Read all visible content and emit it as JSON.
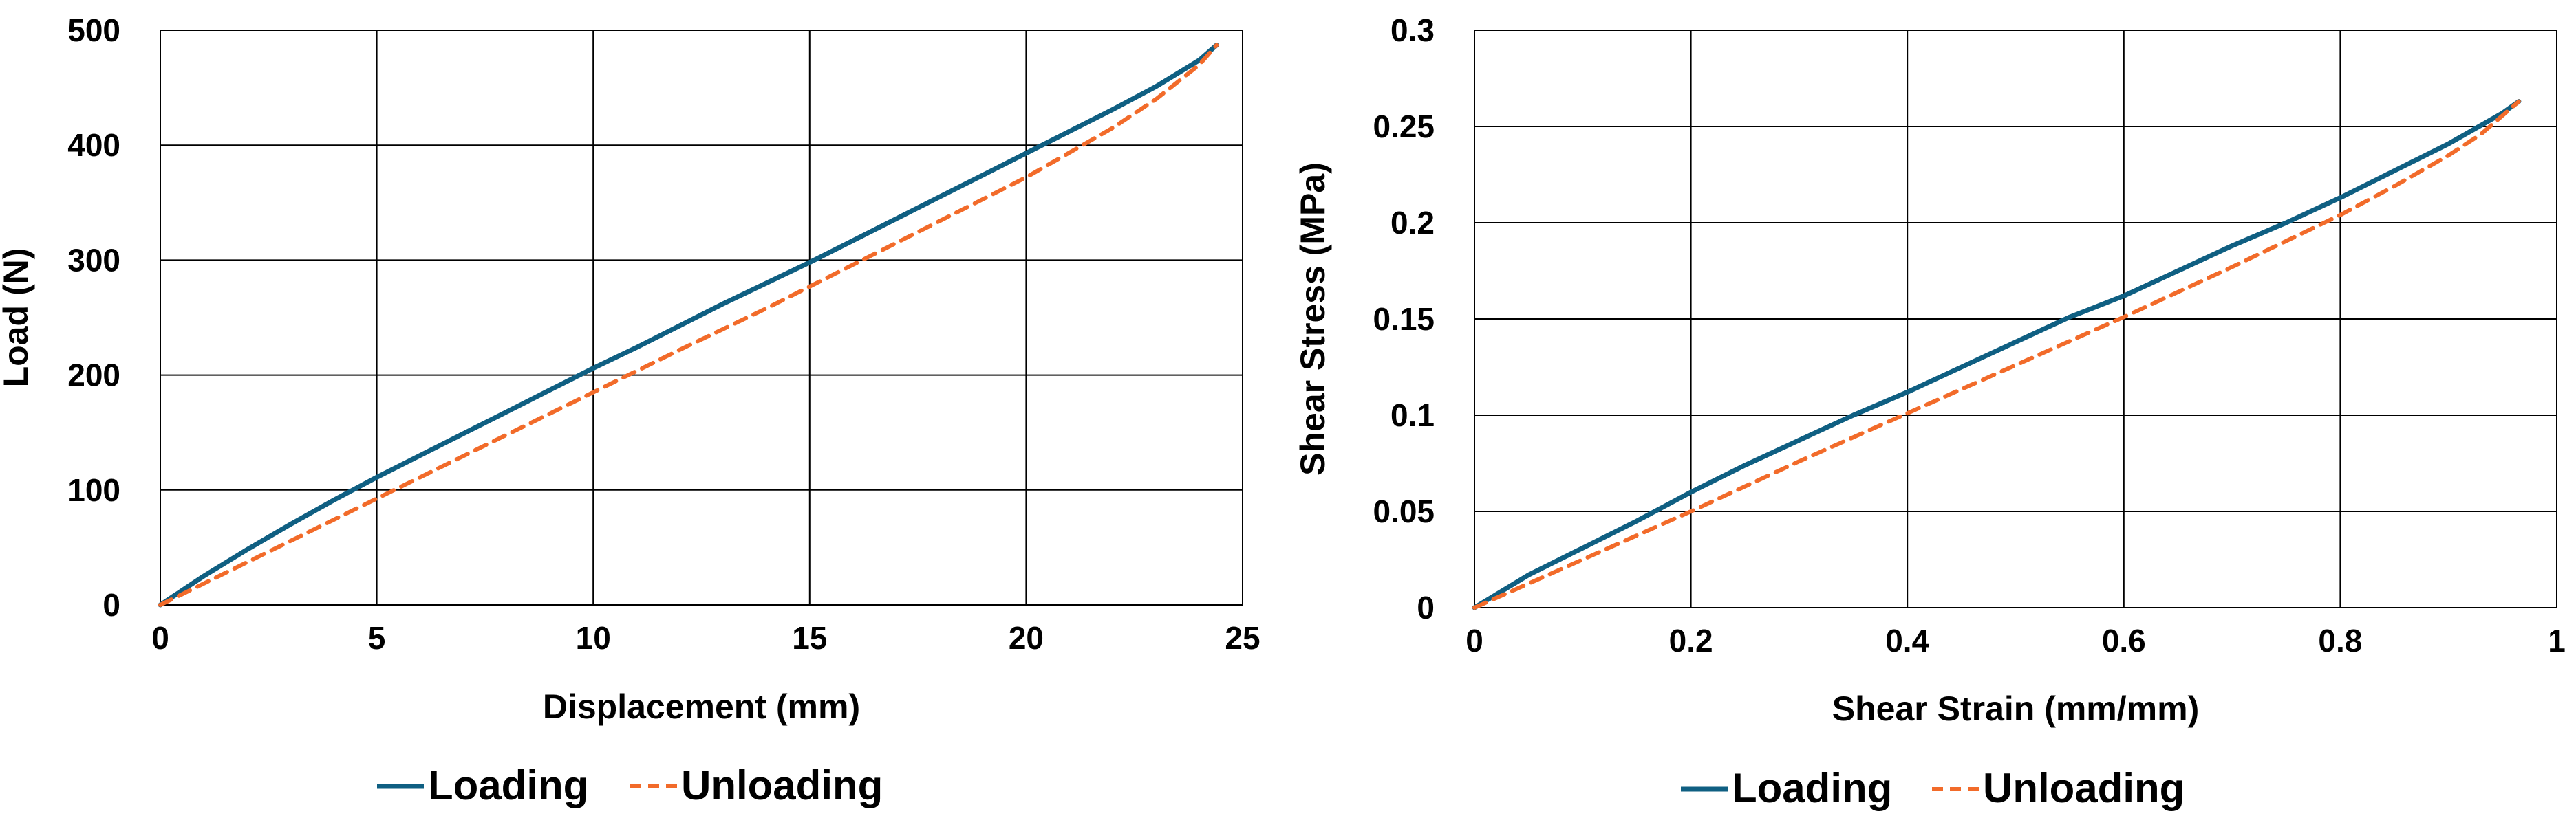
{
  "colors": {
    "loading": "#0f5f82",
    "unloading": "#f26b2a",
    "grid": "#000000",
    "background": "#ffffff"
  },
  "chart_data": [
    {
      "type": "line",
      "title": "",
      "xlabel": "Displacement (mm)",
      "ylabel": "Load (N)",
      "xlim": [
        0,
        25
      ],
      "ylim": [
        0,
        500
      ],
      "xticks": [
        0,
        5,
        10,
        15,
        20,
        25
      ],
      "yticks": [
        0,
        100,
        200,
        300,
        400,
        500
      ],
      "xtick_labels": [
        "0",
        "5",
        "10",
        "15",
        "20",
        "25"
      ],
      "ytick_labels": [
        "0",
        "100",
        "200",
        "300",
        "400",
        "500"
      ],
      "grid": true,
      "legend_position": "bottom",
      "series": [
        {
          "name": "Loading",
          "style": "solid",
          "x": [
            0,
            1,
            2,
            3,
            4,
            5,
            6,
            7,
            8,
            9,
            10,
            11,
            12,
            13,
            14,
            15,
            16,
            17,
            18,
            19,
            20,
            21,
            22,
            23,
            24,
            24.4
          ],
          "y": [
            0,
            25,
            48,
            70,
            91,
            111,
            130,
            149,
            168,
            187,
            206,
            224,
            243,
            262,
            280,
            298,
            317,
            336,
            355,
            374,
            393,
            412,
            431,
            451,
            474,
            487
          ]
        },
        {
          "name": "Unloading",
          "style": "dashed",
          "x": [
            0,
            2,
            4,
            6,
            8,
            10,
            12,
            14,
            16,
            18,
            20,
            22,
            23,
            24,
            24.4
          ],
          "y": [
            0,
            37,
            74,
            111,
            148,
            185,
            222,
            258,
            296,
            334,
            372,
            415,
            440,
            470,
            487
          ]
        }
      ]
    },
    {
      "type": "line",
      "title": "",
      "xlabel": "Shear Strain (mm/mm)",
      "ylabel": "Shear Stress (MPa)",
      "xlim": [
        0,
        1
      ],
      "ylim": [
        0,
        0.3
      ],
      "xticks": [
        0,
        0.2,
        0.4,
        0.6,
        0.8,
        1
      ],
      "yticks": [
        0,
        0.05,
        0.1,
        0.15,
        0.2,
        0.25,
        0.3
      ],
      "xtick_labels": [
        "0",
        "0.2",
        "0.4",
        "0.6",
        "0.8",
        "1"
      ],
      "ytick_labels": [
        "0",
        "0.05",
        "0.1",
        "0.15",
        "0.2",
        "0.25",
        "0.3"
      ],
      "grid": true,
      "legend_position": "bottom",
      "series": [
        {
          "name": "Loading",
          "style": "solid",
          "x": [
            0,
            0.05,
            0.1,
            0.15,
            0.2,
            0.25,
            0.3,
            0.35,
            0.4,
            0.45,
            0.5,
            0.55,
            0.6,
            0.65,
            0.7,
            0.75,
            0.8,
            0.85,
            0.9,
            0.95,
            0.965
          ],
          "y": [
            0,
            0.017,
            0.031,
            0.045,
            0.06,
            0.074,
            0.087,
            0.1,
            0.112,
            0.125,
            0.138,
            0.151,
            0.162,
            0.175,
            0.188,
            0.2,
            0.213,
            0.227,
            0.241,
            0.257,
            0.263
          ]
        },
        {
          "name": "Unloading",
          "style": "dashed",
          "x": [
            0,
            0.1,
            0.2,
            0.3,
            0.4,
            0.5,
            0.6,
            0.7,
            0.8,
            0.85,
            0.9,
            0.93,
            0.965
          ],
          "y": [
            0,
            0.025,
            0.05,
            0.076,
            0.101,
            0.126,
            0.151,
            0.177,
            0.204,
            0.219,
            0.235,
            0.246,
            0.263
          ]
        }
      ]
    }
  ]
}
